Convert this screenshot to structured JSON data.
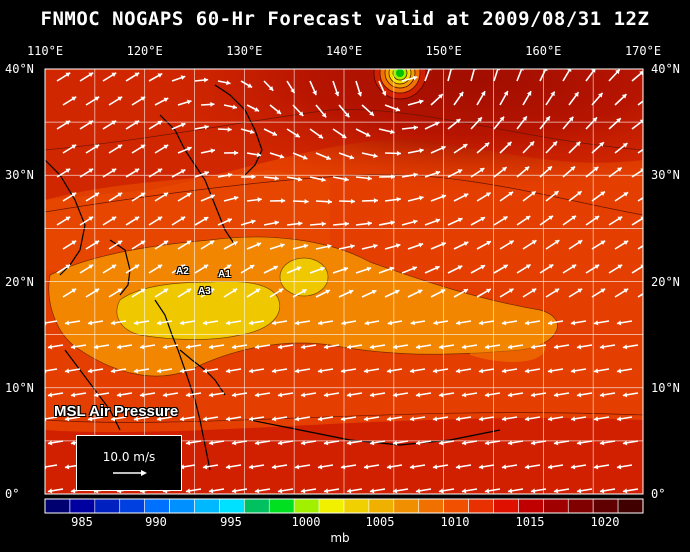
{
  "title": "FNMOC NOGAPS 60-Hr Forecast valid at 2009/08/31 12Z",
  "longitude_labels": [
    "110°E",
    "120°E",
    "130°E",
    "140°E",
    "150°E",
    "160°E",
    "170°E"
  ],
  "latitude_labels": [
    "40°N",
    "30°N",
    "20°N",
    "10°N",
    "0°"
  ],
  "map_caption": "MSL Air Pressure",
  "storm_labels": [
    "A1",
    "A2",
    "A3"
  ],
  "wind_scale": {
    "text": "10.0 m/s",
    "arrow_icon": "arrow-right-icon"
  },
  "colorbar": {
    "unit": "mb",
    "tick_labels": [
      "985",
      "990",
      "995",
      "1000",
      "1005",
      "1010",
      "1015",
      "1020"
    ],
    "bin_colors": [
      "#000070",
      "#0000a0",
      "#0020c0",
      "#0040e0",
      "#0070ff",
      "#0090ff",
      "#00b8ff",
      "#00e0ff",
      "#00c060",
      "#00e020",
      "#a0f000",
      "#f0f000",
      "#f0d000",
      "#f0b000",
      "#f09000",
      "#f07000",
      "#f05000",
      "#e83000",
      "#e01000",
      "#c00000",
      "#a00000",
      "#800000",
      "#600000",
      "#400000"
    ]
  },
  "pressure_fill_colors": {
    "low_north_center": "#00c000",
    "ring_1005": "#f0e000",
    "ring_1010": "#f0b000",
    "base": "#e03c00",
    "north_dark": "#b01000",
    "yellow_zone": "#f0d000"
  }
}
